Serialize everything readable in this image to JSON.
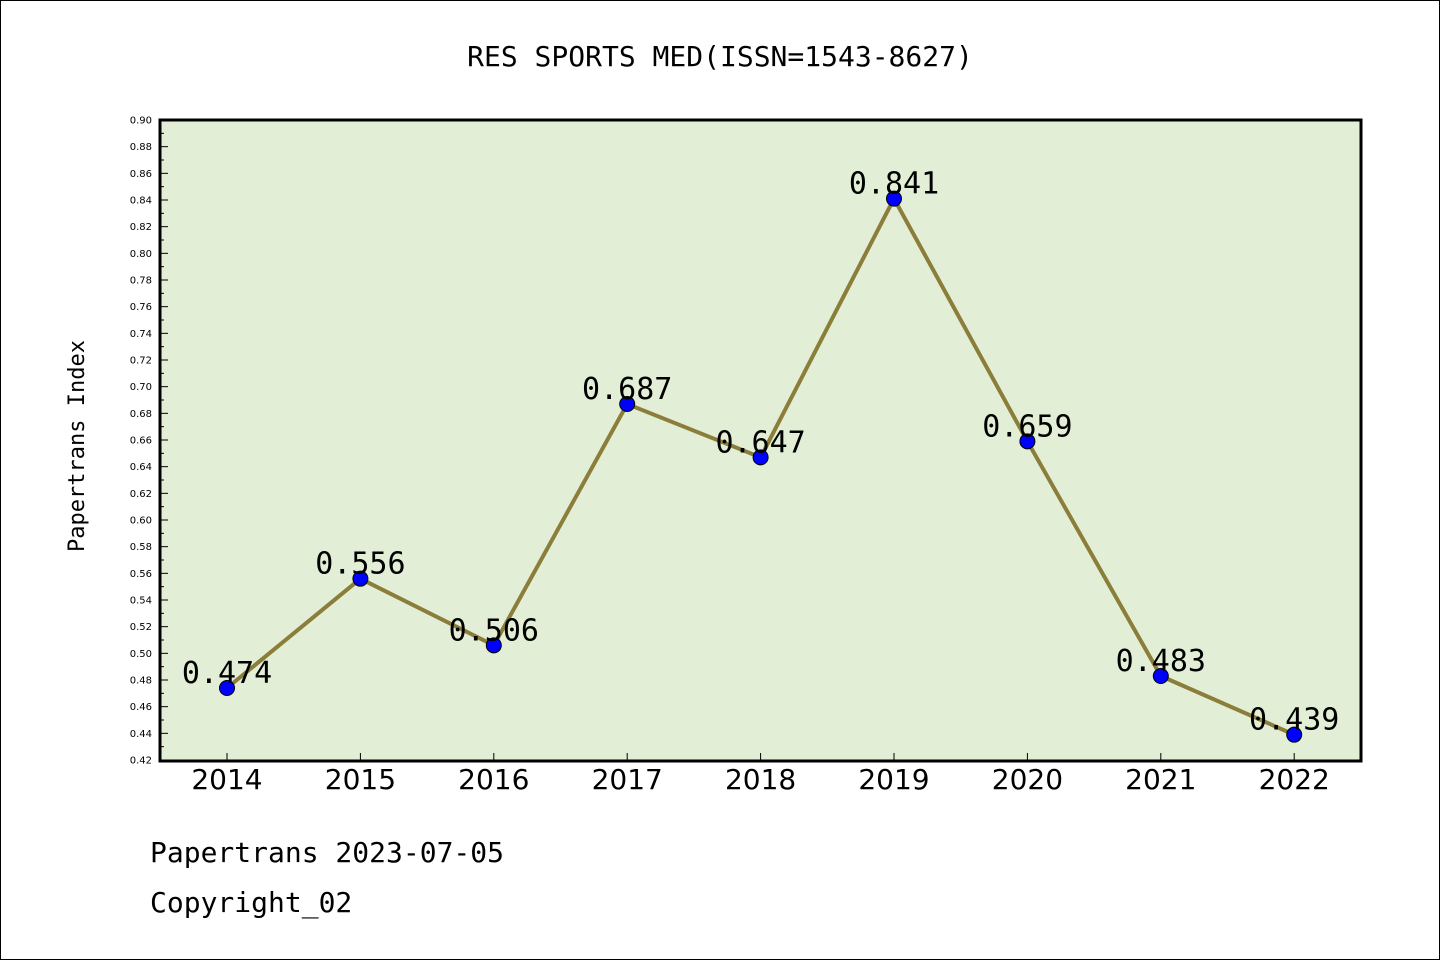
{
  "chart_data": {
    "type": "line",
    "title": "RES SPORTS MED(ISSN=1543-8627)",
    "xlabel": "",
    "ylabel": "Papertrans Index",
    "categories": [
      "2014",
      "2015",
      "2016",
      "2017",
      "2018",
      "2019",
      "2020",
      "2021",
      "2022"
    ],
    "series": [
      {
        "values": [
          0.474,
          0.556,
          0.506,
          0.687,
          0.647,
          0.841,
          0.659,
          0.483,
          0.439
        ],
        "data_labels": [
          "0.474",
          "0.556",
          "0.506",
          "0.687",
          "0.647",
          "0.841",
          "0.659",
          "0.483",
          "0.439"
        ]
      }
    ],
    "ylim": [
      0.42,
      0.9
    ],
    "y_ticks": [
      "0.42",
      "0.44",
      "0.46",
      "0.48",
      "0.50",
      "0.52",
      "0.54",
      "0.56",
      "0.58",
      "0.60",
      "0.62",
      "0.64",
      "0.66",
      "0.68",
      "0.70",
      "0.72",
      "0.74",
      "0.76",
      "0.78",
      "0.80",
      "0.82",
      "0.84",
      "0.86",
      "0.88",
      "0.90"
    ],
    "grid": false,
    "legend": "none",
    "colors": {
      "plot_background": "#e2efd6",
      "line": "#8b7d3a",
      "marker": "#0000ff"
    }
  },
  "footer": {
    "date_line": "Papertrans 2023-07-05",
    "copyright_line": "Copyright_02"
  }
}
